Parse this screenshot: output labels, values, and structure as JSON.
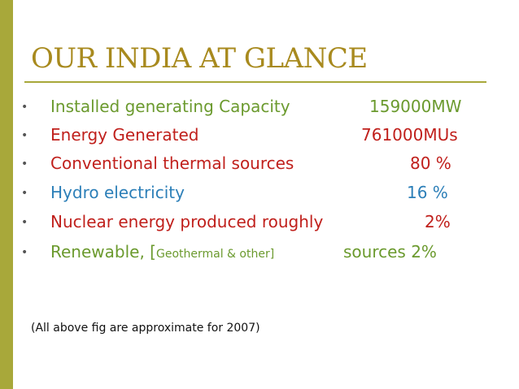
{
  "slide": {
    "title": "OUR INDIA AT GLANCE",
    "footnote": "(All above fig are approximate for 2007)"
  },
  "colors": {
    "accent_bar": "#a8a83a",
    "title": "#a88a1e",
    "green": "#6b9a2e",
    "red": "#c0201c",
    "blue": "#2c7fb8"
  },
  "bullets": [
    {
      "label": "Installed generating Capacity",
      "value": "159000MW",
      "color": "green"
    },
    {
      "label": "Energy Generated",
      "value": "761000MUs",
      "color": "red"
    },
    {
      "label": "Conventional thermal sources",
      "value": "80 %",
      "color": "red"
    },
    {
      "label": "Hydro electricity",
      "value": "16 %",
      "color": "blue"
    },
    {
      "label": "Nuclear energy produced roughly",
      "value": "2%",
      "color": "red"
    },
    {
      "label_prefix": "Renewable, [",
      "label_small": "Geothermal & other]",
      "value": "sources 2%",
      "color": "green"
    }
  ]
}
